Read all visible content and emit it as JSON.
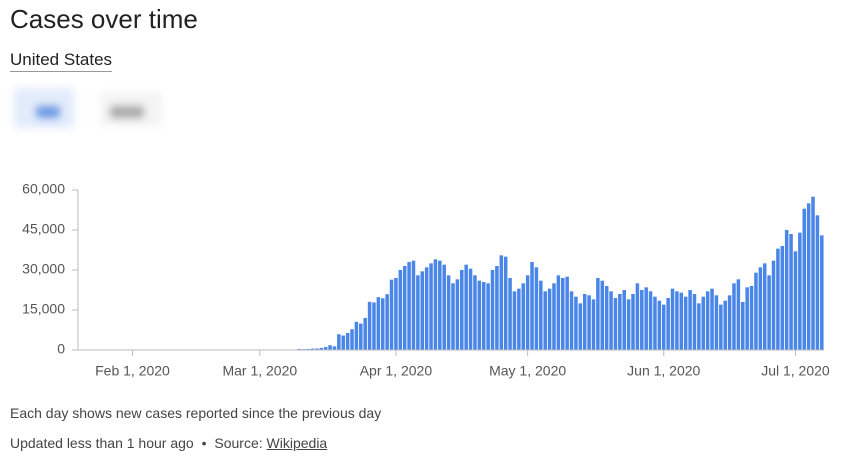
{
  "header": {
    "title": "Cases over time",
    "location": "United States"
  },
  "chart_data": {
    "type": "bar",
    "categories": [
      null,
      null,
      null,
      null,
      null,
      null,
      null,
      null,
      null,
      null,
      null,
      "Feb 1, 2020",
      null,
      null,
      null,
      null,
      null,
      null,
      null,
      null,
      null,
      null,
      null,
      null,
      null,
      null,
      null,
      null,
      null,
      null,
      null,
      null,
      null,
      null,
      null,
      null,
      null,
      null,
      null,
      null,
      "Mar 1, 2020",
      null,
      null,
      null,
      null,
      null,
      null,
      null,
      null,
      null,
      null,
      null,
      null,
      null,
      null,
      null,
      null,
      null,
      null,
      null,
      null,
      null,
      null,
      null,
      null,
      null,
      null,
      null,
      null,
      null,
      null,
      "Apr 1, 2020",
      null,
      null,
      null,
      null,
      null,
      null,
      null,
      null,
      null,
      null,
      null,
      null,
      null,
      null,
      null,
      null,
      null,
      null,
      null,
      null,
      null,
      null,
      null,
      null,
      null,
      null,
      null,
      null,
      null,
      "May 1, 2020",
      null,
      null,
      null,
      null,
      null,
      null,
      null,
      null,
      null,
      null,
      null,
      null,
      null,
      null,
      null,
      null,
      null,
      null,
      null,
      null,
      null,
      null,
      null,
      null,
      null,
      null,
      null,
      null,
      null,
      null,
      "Jun 1, 2020",
      null,
      null,
      null,
      null,
      null,
      null,
      null,
      null,
      null,
      null,
      null,
      null,
      null,
      null,
      null,
      null,
      null,
      null,
      null,
      null,
      null,
      null,
      null,
      null,
      null,
      null,
      null,
      null,
      null,
      "Jul 1, 2020",
      null,
      null,
      null,
      null,
      null,
      null
    ],
    "values": [
      1,
      0,
      0,
      1,
      0,
      2,
      0,
      1,
      0,
      0,
      0,
      1,
      0,
      0,
      0,
      0,
      1,
      0,
      0,
      0,
      0,
      0,
      0,
      0,
      1,
      0,
      0,
      0,
      0,
      0,
      0,
      0,
      0,
      0,
      0,
      0,
      0,
      0,
      1,
      2,
      8,
      23,
      20,
      31,
      68,
      45,
      140,
      116,
      65,
      376,
      322,
      382,
      516,
      548,
      772,
      1133,
      1789,
      1362,
      5894,
      5423,
      6389,
      7787,
      10571,
      9893,
      12038,
      18058,
      17821,
      19821,
      19408,
      20921,
      26365,
      27000,
      30000,
      31500,
      33000,
      33500,
      28000,
      29500,
      31000,
      32500,
      34000,
      33500,
      32000,
      28000,
      25000,
      26500,
      30000,
      32000,
      30500,
      28000,
      26000,
      25500,
      25000,
      30000,
      31500,
      35500,
      35000,
      27000,
      22000,
      23000,
      25000,
      28000,
      33000,
      31000,
      26000,
      22000,
      23000,
      25000,
      28000,
      27000,
      27500,
      22000,
      20000,
      17500,
      21000,
      20500,
      19000,
      27000,
      26000,
      24000,
      22000,
      19500,
      21000,
      22500,
      19000,
      21000,
      25000,
      22500,
      23500,
      22000,
      20000,
      18500,
      17000,
      19500,
      23000,
      22000,
      21500,
      20000,
      22500,
      21000,
      17500,
      20000,
      22000,
      23000,
      20500,
      17000,
      18500,
      20500,
      25000,
      26500,
      18000,
      23500,
      24000,
      29000,
      31000,
      32500,
      28000,
      33500,
      38000,
      39000,
      45000,
      43500,
      37000,
      44000,
      53000,
      55000,
      57500,
      50500,
      43000
    ],
    "color": "#4a86e8",
    "ylim": [
      0,
      60000
    ],
    "yticks": [
      0,
      {
        "value": 15000,
        "label": "15,000"
      },
      {
        "value": 30000,
        "label": "30,000"
      },
      {
        "value": 45000,
        "label": "45,000"
      },
      {
        "value": 60000,
        "label": "60,000"
      }
    ],
    "grid": false
  },
  "footer": {
    "note": "Each day shows new cases reported since the previous day",
    "updated": "Updated less than 1 hour ago",
    "separator": "•",
    "source_label": "Source:",
    "source_link": "Wikipedia"
  }
}
